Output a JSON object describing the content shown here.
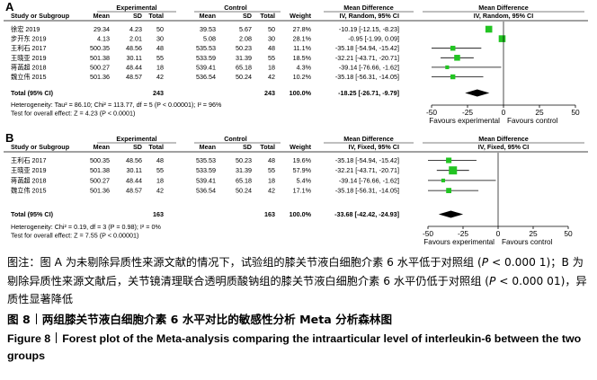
{
  "chart_data": [
    {
      "type": "forest",
      "panel_label": "A",
      "headers": {
        "group1": "Experimental",
        "group2": "Control",
        "effect_title": "Mean Difference",
        "plot_title": "Mean Difference",
        "cols": [
          "Study or Subgroup",
          "Mean",
          "SD",
          "Total",
          "Mean",
          "SD",
          "Total",
          "Weight",
          "IV, Random, 95% CI",
          "IV, Random, 95% CI"
        ]
      },
      "studies": [
        {
          "name": "徐宏 2019",
          "e_mean": "29.34",
          "e_sd": "4.23",
          "e_total": "50",
          "c_mean": "39.53",
          "c_sd": "5.67",
          "c_total": "50",
          "weight": "27.8%",
          "ci_text": "-10.19 [-12.15, -8.23]",
          "md": -10.19,
          "lo": -12.15,
          "hi": -8.23
        },
        {
          "name": "步开东 2019",
          "e_mean": "4.13",
          "e_sd": "2.01",
          "e_total": "30",
          "c_mean": "5.08",
          "c_sd": "2.08",
          "c_total": "30",
          "weight": "28.1%",
          "ci_text": "-0.95 [-1.99, 0.09]",
          "md": -0.95,
          "lo": -1.99,
          "hi": 0.09
        },
        {
          "name": "王利石 2017",
          "e_mean": "500.35",
          "e_sd": "48.56",
          "e_total": "48",
          "c_mean": "535.53",
          "c_sd": "50.23",
          "c_total": "48",
          "weight": "11.1%",
          "ci_text": "-35.18 [-54.94, -15.42]",
          "md": -35.18,
          "lo": -54.94,
          "hi": -15.42
        },
        {
          "name": "王晓亚 2019",
          "e_mean": "501.38",
          "e_sd": "30.11",
          "e_total": "55",
          "c_mean": "533.59",
          "c_sd": "31.39",
          "c_total": "55",
          "weight": "18.5%",
          "ci_text": "-32.21 [-43.71, -20.71]",
          "md": -32.21,
          "lo": -43.71,
          "hi": -20.71
        },
        {
          "name": "蒋菡超 2018",
          "e_mean": "500.27",
          "e_sd": "48.44",
          "e_total": "18",
          "c_mean": "539.41",
          "c_sd": "65.18",
          "c_total": "18",
          "weight": "4.3%",
          "ci_text": "-39.14 [-76.66, -1.62]",
          "md": -39.14,
          "lo": -76.66,
          "hi": -1.62
        },
        {
          "name": "魏立伟 2015",
          "e_mean": "501.36",
          "e_sd": "48.57",
          "e_total": "42",
          "c_mean": "536.54",
          "c_sd": "50.24",
          "c_total": "42",
          "weight": "10.2%",
          "ci_text": "-35.18 [-56.31, -14.05]",
          "md": -35.18,
          "lo": -56.31,
          "hi": -14.05
        }
      ],
      "total": {
        "label": "Total (95% CI)",
        "e_total": "243",
        "c_total": "243",
        "weight": "100.0%",
        "ci_text": "-18.25 [-26.71, -9.79]",
        "md": -18.25,
        "lo": -26.71,
        "hi": -9.79
      },
      "heterogeneity": "Heterogeneity: Tau² = 86.10; Chi² = 113.77, df = 5 (P < 0.00001); I² = 96%",
      "overall_effect": "Test for overall effect: Z = 4.23 (P < 0.0001)",
      "xaxis": {
        "ticks": [
          -50,
          -25,
          0,
          25,
          50
        ],
        "tick_labels": [
          "-50",
          "-25",
          "0",
          "25",
          "50"
        ],
        "range": [
          -50,
          50
        ]
      },
      "favours_left": "Favours experimental",
      "favours_right": "Favours control",
      "marker_color": "#22c422"
    },
    {
      "type": "forest",
      "panel_label": "B",
      "headers": {
        "group1": "Experimental",
        "group2": "Control",
        "effect_title": "Mean Difference",
        "plot_title": "Mean Difference",
        "cols": [
          "Study or Subgroup",
          "Mean",
          "SD",
          "Total",
          "Mean",
          "SD",
          "Total",
          "Weight",
          "IV, Fixed, 95% CI",
          "IV, Fixed, 95% CI"
        ]
      },
      "studies": [
        {
          "name": "王利石 2017",
          "e_mean": "500.35",
          "e_sd": "48.56",
          "e_total": "48",
          "c_mean": "535.53",
          "c_sd": "50.23",
          "c_total": "48",
          "weight": "19.6%",
          "ci_text": "-35.18 [-54.94, -15.42]",
          "md": -35.18,
          "lo": -54.94,
          "hi": -15.42
        },
        {
          "name": "王晓亚 2019",
          "e_mean": "501.38",
          "e_sd": "30.11",
          "e_total": "55",
          "c_mean": "533.59",
          "c_sd": "31.39",
          "c_total": "55",
          "weight": "57.9%",
          "ci_text": "-32.21 [-43.71, -20.71]",
          "md": -32.21,
          "lo": -43.71,
          "hi": -20.71
        },
        {
          "name": "蒋菡超 2018",
          "e_mean": "500.27",
          "e_sd": "48.44",
          "e_total": "18",
          "c_mean": "539.41",
          "c_sd": "65.18",
          "c_total": "18",
          "weight": "5.4%",
          "ci_text": "-39.14 [-76.66, -1.62]",
          "md": -39.14,
          "lo": -76.66,
          "hi": -1.62
        },
        {
          "name": "魏立伟 2015",
          "e_mean": "501.36",
          "e_sd": "48.57",
          "e_total": "42",
          "c_mean": "536.54",
          "c_sd": "50.24",
          "c_total": "42",
          "weight": "17.1%",
          "ci_text": "-35.18 [-56.31, -14.05]",
          "md": -35.18,
          "lo": -56.31,
          "hi": -14.05
        }
      ],
      "total": {
        "label": "Total (95% CI)",
        "e_total": "163",
        "c_total": "163",
        "weight": "100.0%",
        "ci_text": "-33.68 [-42.42, -24.93]",
        "md": -33.68,
        "lo": -42.42,
        "hi": -24.93
      },
      "heterogeneity": "Heterogeneity: Chi² = 0.19, df = 3 (P = 0.98); I² = 0%",
      "overall_effect": "Test for overall effect: Z = 7.55 (P < 0.00001)",
      "xaxis": {
        "ticks": [
          -50,
          -25,
          0,
          25,
          50
        ],
        "tick_labels": [
          "-50",
          "-25",
          "0",
          "25",
          "50"
        ],
        "range": [
          -50,
          50
        ]
      },
      "favours_left": "Favours experimental",
      "favours_right": "Favours control",
      "marker_color": "#22c422"
    }
  ],
  "caption": {
    "note_part1": "图注：图 A 为未剔除异质性来源文献的情况下，试验组的膝关节液白细胞介素 6 水平低于对照组 (",
    "note_p1": "P",
    "note_part2": " < 0.000 1)；B 为剔除异质性来源文献后，关节镜清理联合透明质酸钠组的膝关节液白细胞介素 6 水平仍低于对照组 (",
    "note_p2": "P",
    "note_part3": " < 0.000 01)，异质性显著降低",
    "title_zh_label": "图 8",
    "title_zh": "两组膝关节液白细胞介素 6 水平对比的敏感性分析 Meta 分析森林图",
    "title_en_label": "Figure 8",
    "title_en": "Forest plot of the Meta-analysis comparing the intraarticular level of interleukin-6 between the two groups"
  }
}
